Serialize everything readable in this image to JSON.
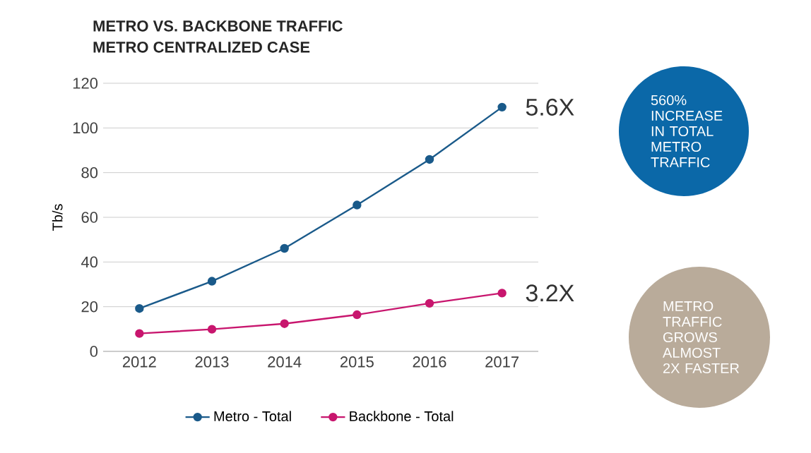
{
  "chart_data": {
    "type": "line",
    "title": "METRO VS. BACKBONE TRAFFIC",
    "subtitle": "METRO CENTRALIZED CASE",
    "ylabel": "Tb/s",
    "categories": [
      "2012",
      "2013",
      "2014",
      "2015",
      "2016",
      "2017"
    ],
    "series": [
      {
        "name": "Metro - Total",
        "color": "#1a5a8a",
        "values": [
          19.2,
          31.4,
          46.1,
          65.5,
          85.9,
          109.3
        ]
      },
      {
        "name": "Backbone - Total",
        "color": "#c8166e",
        "values": [
          8,
          9.9,
          12.4,
          16.4,
          21.5,
          26.1
        ]
      }
    ],
    "ylim": [
      0,
      120
    ],
    "yticks": [
      0,
      20,
      40,
      60,
      80,
      100,
      120
    ],
    "grid": "y",
    "legend": "bottom",
    "marker": "circle",
    "line_style": "solid",
    "annotations": [
      {
        "text": "5.6X",
        "x": "2017",
        "y": 109.3
      },
      {
        "text": "3.2X",
        "x": "2017",
        "y": 26.1
      },
      "560% INCREASE IN TOTAL METRO TRAFFIC",
      "METRO TRAFFIC GROWS ALMOST 2X FASTER"
    ]
  }
}
